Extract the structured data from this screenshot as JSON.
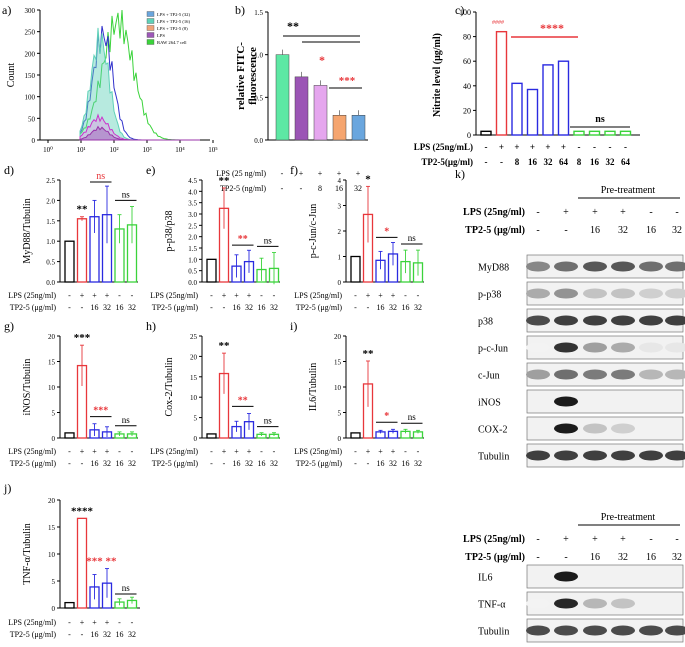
{
  "colors": {
    "black": "#000000",
    "red": "#e8373b",
    "blue": "#2a2ae0",
    "green": "#3bd33b",
    "fc_teal": "#5fd1b8",
    "fc_purple": "#9d58b8",
    "fc_pink": "#e39be6",
    "fc_peach": "#f0a37a",
    "fc_blue": "#6aa5dc"
  },
  "panel_a": {
    "letter": "a)",
    "ylabel": "Count",
    "ticks_y": [
      "0",
      "50",
      "100",
      "150",
      "200",
      "250",
      "300"
    ],
    "ticks_x": [
      "10⁰",
      "10¹",
      "10²",
      "10³",
      "10⁴",
      "10⁵"
    ],
    "legend": [
      "LPS + TP2-5 (32)",
      "LPS + TP2-5 (16)",
      "LPS + TP2-5 (8)",
      "LPS",
      "RAW 264.7 cell"
    ]
  },
  "panel_b": {
    "letter": "b)",
    "ylabel1": "relative FITC-",
    "ylabel2": "fluorescence",
    "yticks": [
      "0.0",
      "0.5",
      "1.0",
      "1.5"
    ],
    "lps_label": "LPS (25 ng/ml)",
    "tp_label": "TP2-5 (ng/ml)",
    "lps_signs": [
      "-",
      "+",
      "+",
      "+",
      "+"
    ],
    "tp_signs": [
      "-",
      "-",
      "8",
      "16",
      "32"
    ],
    "sig_black": "**",
    "sig_red1": "*",
    "sig_red2": "***"
  },
  "panel_c": {
    "letter": "c)",
    "ylabel": "Nitrite level (μg/ml)",
    "yticks": [
      "0",
      "20",
      "40",
      "60",
      "80",
      "100"
    ],
    "lps_label": "LPS (25ng/mL)",
    "tp_label": "TP2-5(μg/ml)",
    "lps_signs": [
      "-",
      "+",
      "+",
      "+",
      "+",
      "+",
      "-",
      "-",
      "-",
      "-"
    ],
    "tp_signs": [
      "-",
      "-",
      "8",
      "16",
      "32",
      "64",
      "8",
      "16",
      "32",
      "64"
    ],
    "sig_hash": "####",
    "sig_red": "****",
    "sig_ns": "ns"
  },
  "bar_panels": [
    {
      "letter": "d)",
      "ylabel": "MyD88/Tubulin",
      "yticks": [
        "0.0",
        "0.5",
        "1.0",
        "1.5",
        "2.0",
        "2.5"
      ],
      "sig": [
        "**",
        "ns",
        "ns"
      ]
    },
    {
      "letter": "e)",
      "ylabel": "p-p38/p38",
      "yticks": [
        "0.0",
        "0.5",
        "1.0",
        "1.5",
        "2.0",
        "2.5",
        "3.0",
        "3.5",
        "4.0",
        "4.5"
      ],
      "sig": [
        "**",
        "**",
        "ns"
      ]
    },
    {
      "letter": "f)",
      "ylabel": "p-c-Jun/c-Jun",
      "yticks": [
        "0",
        "1",
        "2",
        "3",
        "4"
      ],
      "sig": [
        "*",
        "*",
        "ns"
      ]
    },
    {
      "letter": "g)",
      "ylabel": "iNOS/Tubulin",
      "yticks": [
        "0",
        "5",
        "10",
        "15",
        "20"
      ],
      "sig": [
        "***",
        "***",
        "ns"
      ]
    },
    {
      "letter": "h)",
      "ylabel": "Cox-2/Tubulin",
      "yticks": [
        "0",
        "5",
        "10",
        "15",
        "20",
        "25"
      ],
      "sig": [
        "**",
        "**",
        "ns"
      ]
    },
    {
      "letter": "i)",
      "ylabel": "IL6/Tubulin",
      "yticks": [
        "0",
        "5",
        "10",
        "15",
        "20"
      ],
      "sig": [
        "**",
        "*",
        "ns"
      ]
    },
    {
      "letter": "j)",
      "ylabel": "TNF-α/Tubulin",
      "yticks": [
        "0",
        "5",
        "10",
        "15",
        "20"
      ],
      "sig": [
        "****",
        "***",
        "**",
        "ns"
      ]
    }
  ],
  "bar_x": {
    "lps_label": "LPS (25ng/ml)",
    "tp_label": "TP2-5 (μg/ml)",
    "lps_signs": [
      "-",
      "+",
      "+",
      "+",
      "-",
      "-"
    ],
    "tp_signs": [
      "-",
      "-",
      "16",
      "32",
      "16",
      "32"
    ]
  },
  "panel_k": {
    "letter": "k)",
    "pretreat": "Pre-treatment",
    "lps_label": "LPS (25ng/ml)",
    "tp_label": "TP2-5 (μg/ml)",
    "lps_signs": [
      "-",
      "+",
      "+",
      "+",
      "-",
      "-"
    ],
    "tp_signs": [
      "-",
      "-",
      "16",
      "32",
      "16",
      "32"
    ],
    "bands1": [
      "MyD88",
      "p-p38",
      "p38",
      "p-c-Jun",
      "c-Jun",
      "iNOS",
      "COX-2",
      "Tubulin"
    ],
    "bands2": [
      "IL6",
      "TNF-α",
      "Tubulin"
    ]
  },
  "chart_data": [
    {
      "type": "line",
      "title": "",
      "ylabel": "Count",
      "ylim": [
        0,
        300
      ],
      "series": [
        {
          "name": "LPS + TP2-5 (32)"
        },
        {
          "name": "LPS + TP2-5 (16)"
        },
        {
          "name": "LPS + TP2-5 (8)"
        },
        {
          "name": "LPS"
        },
        {
          "name": "RAW 264.7 cell"
        }
      ]
    },
    {
      "type": "bar",
      "ylabel": "relative FITC-fluorescence",
      "ylim": [
        0,
        1.5
      ],
      "values": [
        1.0,
        0.74,
        0.64,
        0.29,
        0.29
      ]
    },
    {
      "type": "bar",
      "ylabel": "Nitrite level (μg/ml)",
      "ylim": [
        0,
        100
      ],
      "values": [
        3,
        84,
        42,
        37,
        57,
        60,
        3,
        3,
        3,
        3
      ]
    },
    {
      "type": "bar",
      "ylabel": "MyD88/Tubulin",
      "ylim": [
        0,
        2.5
      ],
      "values": [
        1.0,
        1.55,
        1.6,
        1.65,
        1.3,
        1.4
      ],
      "errors": [
        0,
        0.05,
        0.4,
        0.7,
        0.35,
        0.45
      ]
    },
    {
      "type": "bar",
      "ylabel": "p-p38/p38",
      "ylim": [
        0,
        4.5
      ],
      "values": [
        1.0,
        3.25,
        0.7,
        0.9,
        0.55,
        0.6
      ],
      "errors": [
        0,
        0.9,
        0.5,
        0.5,
        0.5,
        0.7
      ]
    },
    {
      "type": "bar",
      "ylabel": "p-c-Jun/c-Jun",
      "ylim": [
        0,
        4
      ],
      "values": [
        1.0,
        2.65,
        0.85,
        1.1,
        0.8,
        0.75
      ],
      "errors": [
        0,
        1.1,
        0.35,
        0.45,
        0.45,
        0.5
      ]
    },
    {
      "type": "bar",
      "ylabel": "iNOS/Tubulin",
      "ylim": [
        0,
        20
      ],
      "values": [
        1.0,
        14.2,
        1.6,
        1.2,
        0.8,
        0.8
      ],
      "errors": [
        0,
        4,
        1.2,
        1.0,
        0.4,
        0.4
      ]
    },
    {
      "type": "bar",
      "ylabel": "Cox-2/Tubulin",
      "ylim": [
        0,
        25
      ],
      "values": [
        1.0,
        15.8,
        2.8,
        4.0,
        0.9,
        0.9
      ],
      "errors": [
        0,
        5,
        1.3,
        2,
        0.4,
        0.4
      ]
    },
    {
      "type": "bar",
      "ylabel": "IL6/Tubulin",
      "ylim": [
        0,
        20
      ],
      "values": [
        1.0,
        10.6,
        1.2,
        1.3,
        1.3,
        1.2
      ],
      "errors": [
        0,
        4.5,
        0.3,
        0.4,
        0.4,
        0.3
      ]
    },
    {
      "type": "bar",
      "ylabel": "TNF-α/Tubulin",
      "ylim": [
        0,
        20
      ],
      "values": [
        1.0,
        16.6,
        3.9,
        4.6,
        1.1,
        1.4
      ],
      "errors": [
        0,
        0,
        2.3,
        2.7,
        0.6,
        0.6
      ]
    }
  ]
}
